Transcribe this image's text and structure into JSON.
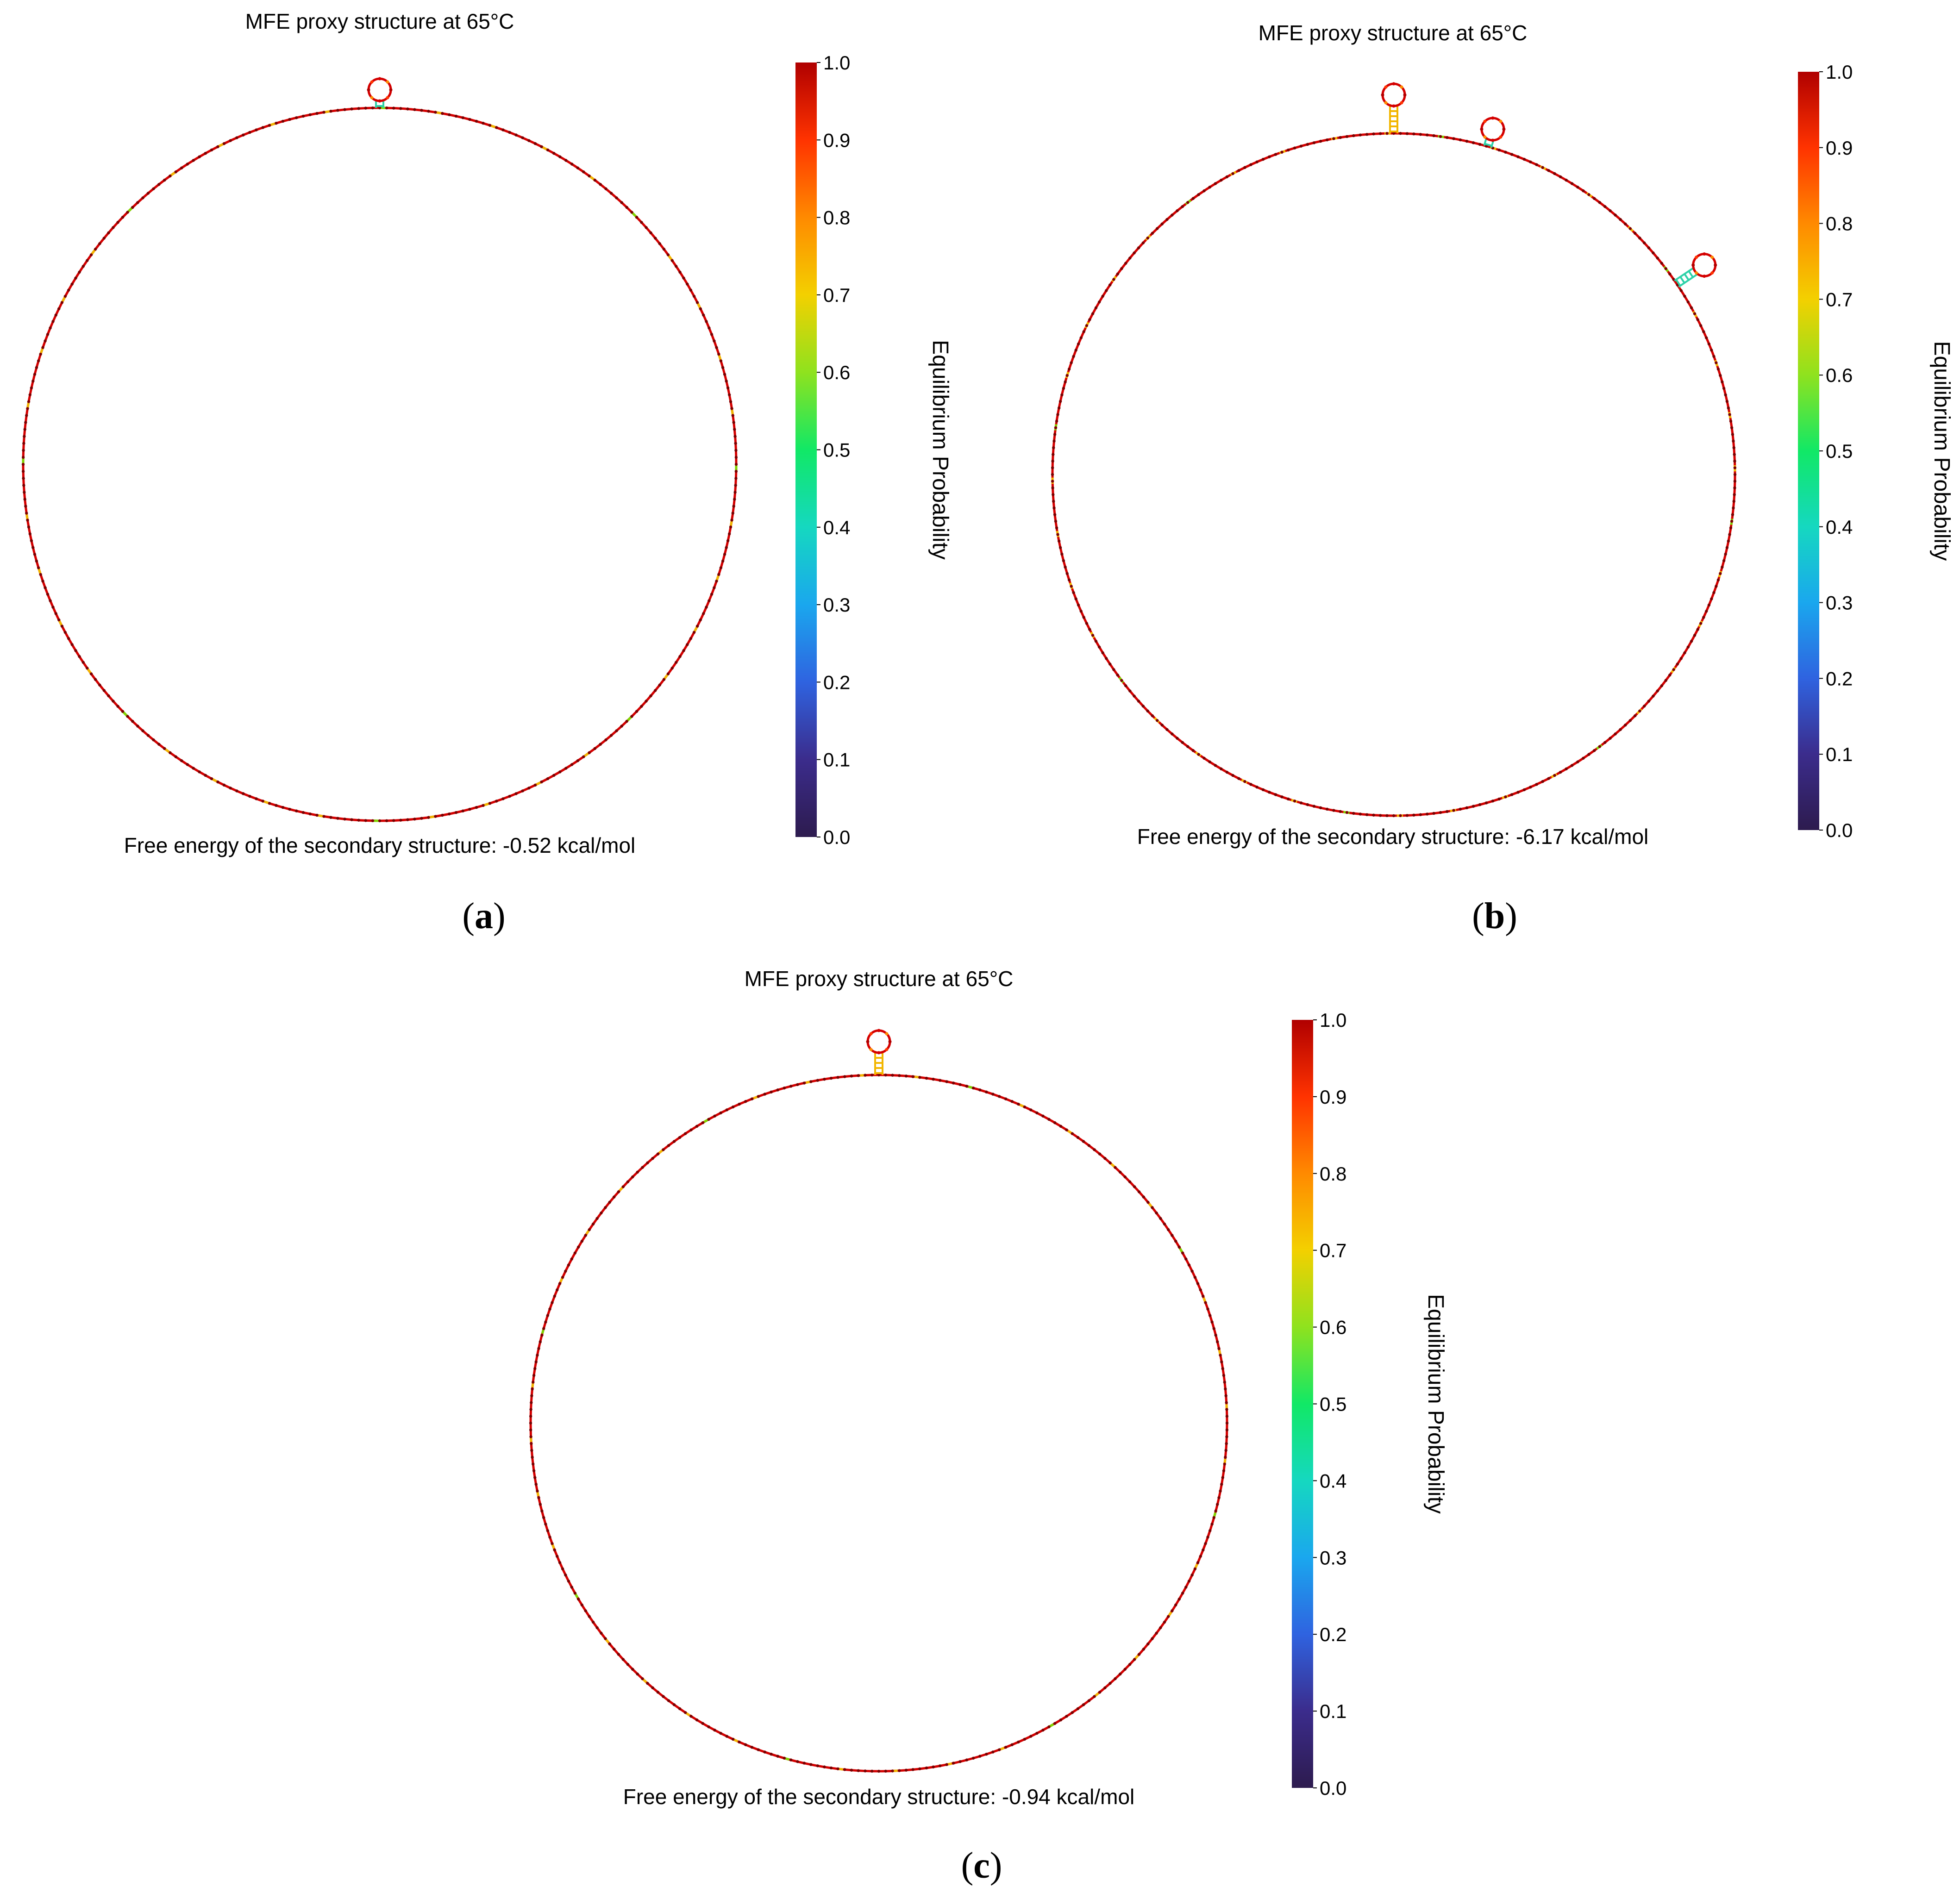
{
  "panels": [
    {
      "id": "a",
      "label": "(a)",
      "label_letter": "a",
      "title": "MFE proxy structure at 65°C",
      "energy_text": "Free energy of the secondary structure: -0.52 kcal/mol",
      "colorbar": {
        "label": "Equilibrium Probability",
        "ticks": [
          "0.0",
          "0.1",
          "0.2",
          "0.3",
          "0.4",
          "0.5",
          "0.6",
          "0.7",
          "0.8",
          "0.9",
          "1.0"
        ]
      },
      "hairpins": [
        {
          "angle_deg": -90,
          "stem_pairs": 2,
          "stem_color": "#2ed1a8"
        }
      ]
    },
    {
      "id": "b",
      "label": "(b)",
      "label_letter": "b",
      "title": "MFE proxy structure at 65°C",
      "energy_text": "Free energy of the secondary structure: -6.17 kcal/mol",
      "colorbar": {
        "label": "Equilibrium Probability",
        "ticks": [
          "0.0",
          "0.1",
          "0.2",
          "0.3",
          "0.4",
          "0.5",
          "0.6",
          "0.7",
          "0.8",
          "0.9",
          "1.0"
        ]
      },
      "hairpins": [
        {
          "angle_deg": -90,
          "stem_pairs": 6,
          "stem_color": "#f2b600"
        },
        {
          "angle_deg": -74,
          "stem_pairs": 2,
          "stem_color": "#2ed1a8"
        },
        {
          "angle_deg": -34,
          "stem_pairs": 5,
          "stem_color": "#2ed1a8"
        }
      ]
    },
    {
      "id": "c",
      "label": "(c)",
      "label_letter": "c",
      "title": "MFE proxy structure at 65°C",
      "energy_text": "Free energy of the secondary structure: -0.94 kcal/mol",
      "colorbar": {
        "label": "Equilibrium Probability",
        "ticks": [
          "0.0",
          "0.1",
          "0.2",
          "0.3",
          "0.4",
          "0.5",
          "0.6",
          "0.7",
          "0.8",
          "0.9",
          "1.0"
        ]
      },
      "hairpins": [
        {
          "angle_deg": -90,
          "stem_pairs": 5,
          "stem_color": "#f2b600"
        }
      ]
    }
  ],
  "colormap": [
    "#2d1b4e",
    "#3b2c8c",
    "#2f63e0",
    "#1aa7ee",
    "#15d8c0",
    "#11e866",
    "#8fe21e",
    "#f3d000",
    "#ff8a00",
    "#ff3300",
    "#b00000"
  ],
  "ring_colors": {
    "main": "#d40000",
    "secondary": "#f2b600",
    "accent": "#7fd400"
  }
}
